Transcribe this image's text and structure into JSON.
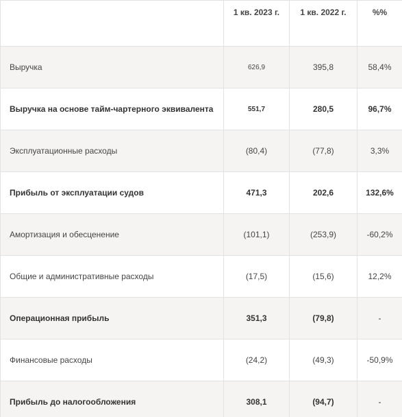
{
  "table": {
    "headers": [
      "",
      "1 кв. 2023 г.",
      "1 кв. 2022 г.",
      "%%"
    ],
    "rows": [
      {
        "label": "Выручка",
        "q1_2023": "626,9",
        "q1_2022": "395,8",
        "pct": "58,4%"
      },
      {
        "label": "Выручка на основе тайм-чартерного эквивалента",
        "q1_2023": "551,7",
        "q1_2022": "280,5",
        "pct": "96,7%"
      },
      {
        "label": "Эксплуатационные расходы",
        "q1_2023": "(80,4)",
        "q1_2022": "(77,8)",
        "pct": "3,3%"
      },
      {
        "label": "Прибыль от эксплуатации судов",
        "q1_2023": "471,3",
        "q1_2022": "202,6",
        "pct": "132,6%"
      },
      {
        "label": "Амортизация и обесценение",
        "q1_2023": "(101,1)",
        "q1_2022": "(253,9)",
        "pct": "-60,2%"
      },
      {
        "label": "Общие и административные расходы",
        "q1_2023": "(17,5)",
        "q1_2022": "(15,6)",
        "pct": "12,2%"
      },
      {
        "label": "Операционная прибыль",
        "q1_2023": "351,3",
        "q1_2022": "(79,8)",
        "pct": "-"
      },
      {
        "label": "Финансовые расходы",
        "q1_2023": "(24,2)",
        "q1_2022": "(49,3)",
        "pct": "-50,9%"
      },
      {
        "label": "Прибыль до налогообложения",
        "q1_2023": "308,1",
        "q1_2022": "(94,7)",
        "pct": "-"
      }
    ]
  }
}
